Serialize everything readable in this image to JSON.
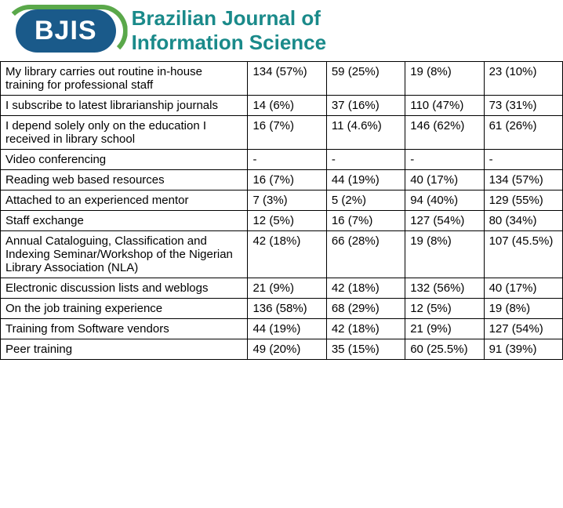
{
  "header": {
    "logo_text": "BJIS",
    "title_line1": "Brazilian Journal of",
    "title_line2": "Information Science"
  },
  "table": {
    "rows": [
      {
        "label": "My library carries out routine in-house training for professional staff",
        "c1": "134 (57%)",
        "c2": "59 (25%)",
        "c3": "19 (8%)",
        "c4": "23 (10%)"
      },
      {
        "label": "I subscribe to latest librarianship journals",
        "c1": "14 (6%)",
        "c2": "37 (16%)",
        "c3": "110 (47%)",
        "c4": "73 (31%)"
      },
      {
        "label": "I depend solely only on the education I received in library school",
        "c1": "16 (7%)",
        "c2": "11 (4.6%)",
        "c3": "146 (62%)",
        "c4": "61 (26%)"
      },
      {
        "label": "Video conferencing",
        "c1": "-",
        "c2": "-",
        "c3": "-",
        "c4": "-"
      },
      {
        "label": "Reading web based resources",
        "c1": "16 (7%)",
        "c2": "44 (19%)",
        "c3": "40 (17%)",
        "c4": "134 (57%)"
      },
      {
        "label": "Attached to an experienced mentor",
        "c1": "7 (3%)",
        "c2": "5 (2%)",
        "c3": "94 (40%)",
        "c4": "129 (55%)"
      },
      {
        "label": "Staff exchange",
        "c1": " 12 (5%)",
        "c2": "16 (7%)",
        "c3": "127 (54%)",
        "c4": "80 (34%)"
      },
      {
        "label": "Annual Cataloguing, Classification and Indexing Seminar/Workshop of the Nigerian Library Association (NLA)",
        "c1": "42 (18%)",
        "c2": "66 (28%)",
        "c3": "19 (8%)",
        "c4": "107 (45.5%)"
      },
      {
        "label": "Electronic discussion lists and weblogs",
        "c1": "21 (9%)",
        "c2": "42 (18%)",
        "c3": "132 (56%)",
        "c4": "40 (17%)"
      },
      {
        "label": "On the job training experience",
        "c1": "136 (58%)",
        "c2": "68 (29%)",
        "c3": "12 (5%)",
        "c4": "19 (8%)"
      },
      {
        "label": "Training from Software vendors",
        "c1": "44 (19%)",
        "c2": "42 (18%)",
        "c3": "21 (9%)",
        "c4": "127 (54%)"
      },
      {
        "label": "Peer training",
        "c1": "49 (20%)",
        "c2": "35 (15%)",
        "c3": "60 (25.5%)",
        "c4": "91 (39%)"
      }
    ]
  },
  "style": {
    "header_logo_bg": "#1a5a8a",
    "header_logo_text_color": "#ffffff",
    "header_title_color": "#1a8a8a",
    "green_ring": "#5aa84a",
    "table_border_color": "#000000",
    "font_family": "Arial",
    "cell_fontsize": 15
  }
}
